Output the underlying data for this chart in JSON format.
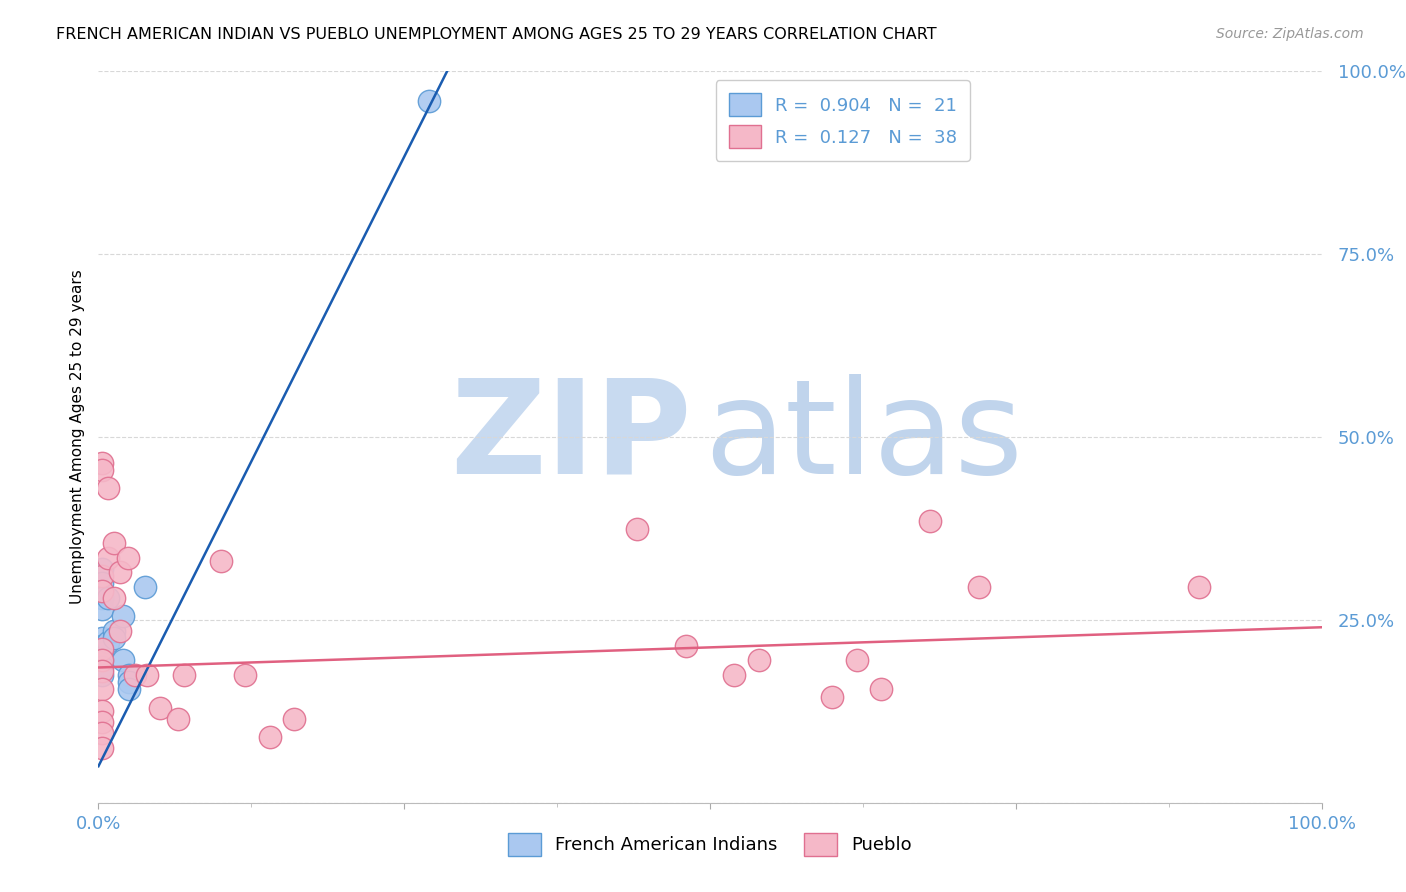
{
  "title": "FRENCH AMERICAN INDIAN VS PUEBLO UNEMPLOYMENT AMONG AGES 25 TO 29 YEARS CORRELATION CHART",
  "source": "Source: ZipAtlas.com",
  "ylabel": "Unemployment Among Ages 25 to 29 years",
  "xlim": [
    0,
    1.0
  ],
  "ylim": [
    0,
    1.0
  ],
  "blue_scatter": [
    [
      0.003,
      0.32
    ],
    [
      0.003,
      0.3
    ],
    [
      0.003,
      0.28
    ],
    [
      0.003,
      0.265
    ],
    [
      0.003,
      0.225
    ],
    [
      0.003,
      0.215
    ],
    [
      0.003,
      0.205
    ],
    [
      0.003,
      0.195
    ],
    [
      0.003,
      0.185
    ],
    [
      0.003,
      0.175
    ],
    [
      0.008,
      0.28
    ],
    [
      0.008,
      0.22
    ],
    [
      0.013,
      0.235
    ],
    [
      0.013,
      0.225
    ],
    [
      0.02,
      0.255
    ],
    [
      0.02,
      0.195
    ],
    [
      0.025,
      0.175
    ],
    [
      0.025,
      0.165
    ],
    [
      0.025,
      0.155
    ],
    [
      0.038,
      0.295
    ],
    [
      0.27,
      0.96
    ]
  ],
  "pink_scatter": [
    [
      0.003,
      0.465
    ],
    [
      0.003,
      0.455
    ],
    [
      0.003,
      0.31
    ],
    [
      0.003,
      0.29
    ],
    [
      0.003,
      0.21
    ],
    [
      0.003,
      0.195
    ],
    [
      0.003,
      0.18
    ],
    [
      0.003,
      0.155
    ],
    [
      0.003,
      0.125
    ],
    [
      0.003,
      0.11
    ],
    [
      0.003,
      0.095
    ],
    [
      0.003,
      0.075
    ],
    [
      0.008,
      0.43
    ],
    [
      0.008,
      0.335
    ],
    [
      0.013,
      0.355
    ],
    [
      0.013,
      0.28
    ],
    [
      0.018,
      0.315
    ],
    [
      0.018,
      0.235
    ],
    [
      0.024,
      0.335
    ],
    [
      0.03,
      0.175
    ],
    [
      0.04,
      0.175
    ],
    [
      0.05,
      0.13
    ],
    [
      0.065,
      0.115
    ],
    [
      0.07,
      0.175
    ],
    [
      0.1,
      0.33
    ],
    [
      0.12,
      0.175
    ],
    [
      0.14,
      0.09
    ],
    [
      0.16,
      0.115
    ],
    [
      0.44,
      0.375
    ],
    [
      0.48,
      0.215
    ],
    [
      0.52,
      0.175
    ],
    [
      0.54,
      0.195
    ],
    [
      0.6,
      0.145
    ],
    [
      0.62,
      0.195
    ],
    [
      0.64,
      0.155
    ],
    [
      0.68,
      0.385
    ],
    [
      0.72,
      0.295
    ],
    [
      0.9,
      0.295
    ]
  ],
  "blue_line_x": [
    0.0,
    0.285
  ],
  "blue_line_y": [
    0.05,
    1.0
  ],
  "pink_line_x": [
    0.0,
    1.0
  ],
  "pink_line_y": [
    0.185,
    0.24
  ],
  "blue_scatter_color": "#aac8f0",
  "pink_scatter_color": "#f5b8c8",
  "blue_edge_color": "#5b9bd5",
  "pink_edge_color": "#e07090",
  "blue_line_color": "#1a5cb0",
  "pink_line_color": "#e06080",
  "watermark_zip_color": "#c8daf0",
  "watermark_atlas_color": "#c0d4ec",
  "grid_color": "#d8d8d8",
  "background_color": "#ffffff",
  "tick_color": "#5b9bd5",
  "title_fontsize": 11.5,
  "axis_label_fontsize": 11,
  "tick_fontsize": 13
}
